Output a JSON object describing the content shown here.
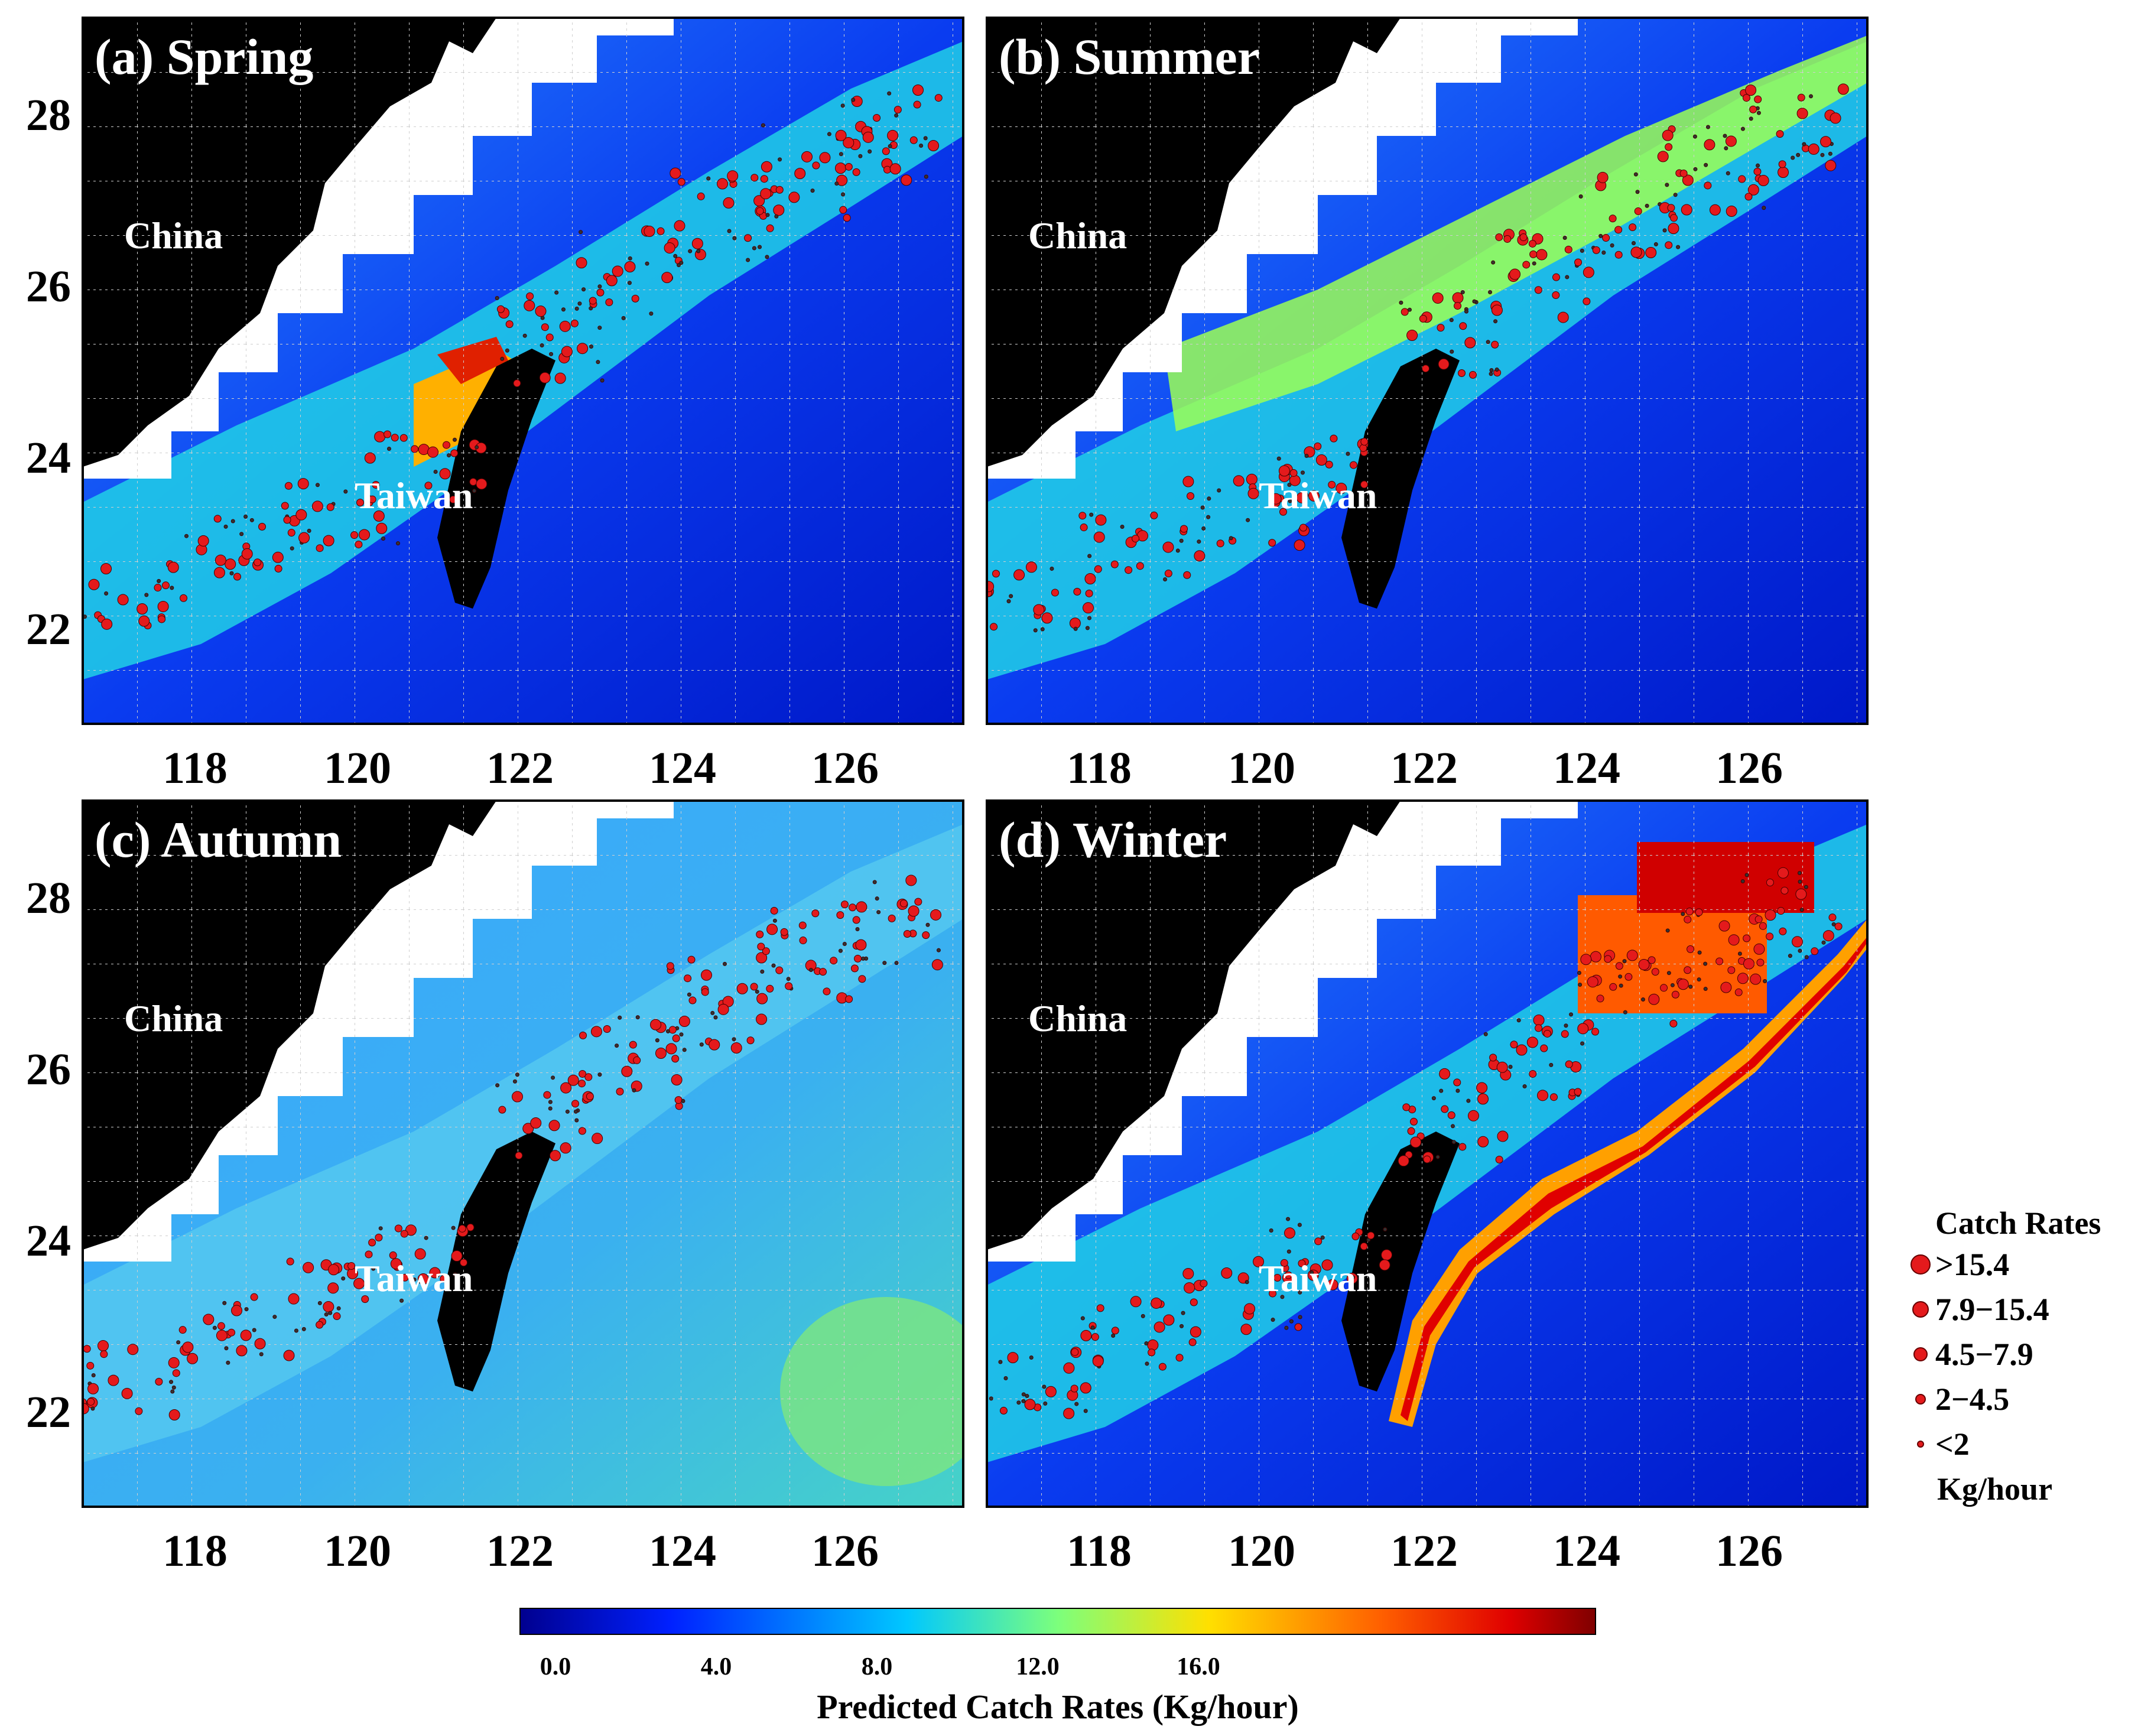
{
  "panels": [
    {
      "id": "spring",
      "title": "(a) Spring",
      "china": "China",
      "taiwan": "Taiwan",
      "hotspot": "coastal"
    },
    {
      "id": "summer",
      "title": "(b) Summer",
      "china": "China",
      "taiwan": "Taiwan",
      "hotspot": "shelf"
    },
    {
      "id": "autumn",
      "title": "(c) Autumn",
      "china": "China",
      "taiwan": "Taiwan",
      "hotspot": "offshore"
    },
    {
      "id": "winter",
      "title": "(d) Winter",
      "china": "China",
      "taiwan": "Taiwan",
      "hotspot": "kuroshio"
    }
  ],
  "axes": {
    "lon_ticks": [
      "118",
      "120",
      "122",
      "124",
      "126"
    ],
    "lat_ticks": [
      "28",
      "26",
      "24",
      "22"
    ]
  },
  "colorbar": {
    "ticks": [
      "0.0",
      "4.0",
      "8.0",
      "12.0",
      "16.0"
    ],
    "label": "Predicted Catch Rates (Kg/hour)",
    "colors": [
      "#00008f",
      "#0020ff",
      "#00c8ff",
      "#7cff7c",
      "#ffe000",
      "#ff6000",
      "#e00000",
      "#7f0000"
    ]
  },
  "legend": {
    "title": "Catch Rates",
    "items": [
      ">15.4",
      "7.9−15.4",
      "4.5−7.9",
      "2−4.5",
      "<2"
    ],
    "unit": "Kg/hour",
    "marker_color": "#e41a1c"
  }
}
